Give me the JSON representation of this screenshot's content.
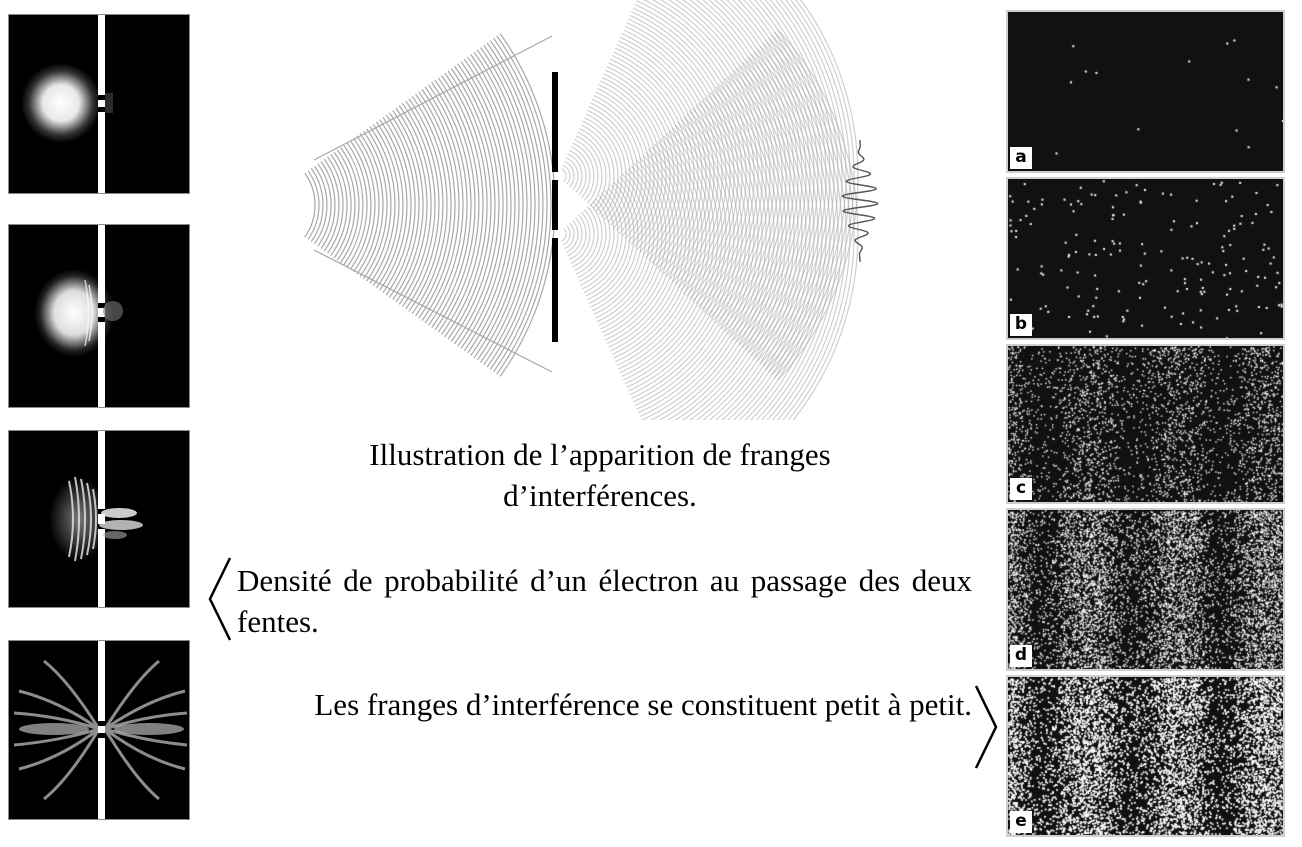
{
  "captions": {
    "fringes": "Illustration de l’apparition de franges d’interférences.",
    "density": "Densité de probabilité d’un électron au passage des deux fentes.",
    "buildup": "Les franges d’interférence se constituent petit à petit."
  },
  "panels": [
    {
      "label": "a"
    },
    {
      "label": "b"
    },
    {
      "label": "c"
    },
    {
      "label": "d"
    },
    {
      "label": "e"
    }
  ],
  "colors": {
    "background": "#ffffff",
    "wave": "#9e9e9e",
    "barrier": "#000000",
    "panel_bg": "#111111",
    "dot": "#ffffff"
  }
}
